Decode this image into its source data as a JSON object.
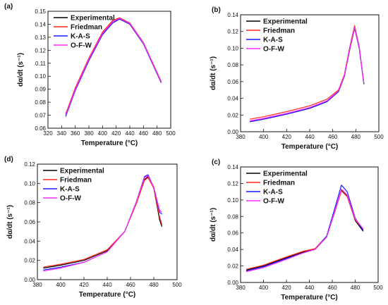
{
  "chart_data": [
    {
      "type": "line",
      "panel_label": "(a)",
      "xlabel": "Temperature (°C)",
      "ylabel": "dα/dt (s⁻¹)",
      "xlim": [
        320,
        500
      ],
      "ylim": [
        0.06,
        0.15
      ],
      "xticks": [
        320,
        340,
        360,
        380,
        400,
        420,
        440,
        460,
        480,
        500
      ],
      "yticks": [
        0.06,
        0.07,
        0.08,
        0.09,
        0.1,
        0.11,
        0.12,
        0.13,
        0.14,
        0.15
      ],
      "legend": "top-left",
      "series": [
        {
          "name": "Experimental",
          "color": "#000000",
          "x": [
            346,
            360,
            380,
            400,
            415,
            425,
            440,
            460,
            486
          ],
          "y": [
            0.07,
            0.09,
            0.113,
            0.133,
            0.142,
            0.144,
            0.14,
            0.125,
            0.095
          ]
        },
        {
          "name": "Friedman",
          "color": "#ff2a1a",
          "x": [
            346,
            360,
            380,
            400,
            415,
            425,
            440,
            460,
            486
          ],
          "y": [
            0.071,
            0.091,
            0.114,
            0.134,
            0.143,
            0.145,
            0.141,
            0.126,
            0.096
          ]
        },
        {
          "name": "K-A-S",
          "color": "#1a1aff",
          "x": [
            346,
            360,
            380,
            400,
            415,
            425,
            440,
            460,
            486
          ],
          "y": [
            0.069,
            0.089,
            0.112,
            0.132,
            0.141,
            0.144,
            0.14,
            0.125,
            0.095
          ]
        },
        {
          "name": "O-F-W",
          "color": "#ff2aff",
          "x": [
            346,
            360,
            380,
            400,
            415,
            425,
            440,
            460,
            486
          ],
          "y": [
            0.07,
            0.09,
            0.113,
            0.133,
            0.142,
            0.1445,
            0.1405,
            0.1255,
            0.0955
          ]
        }
      ]
    },
    {
      "type": "line",
      "panel_label": "(b)",
      "xlabel": "Temperature (°C)",
      "ylabel": "dα/dt (s⁻¹)",
      "xlim": [
        380,
        500
      ],
      "ylim": [
        0.0,
        0.14
      ],
      "xticks": [
        380,
        400,
        420,
        440,
        460,
        480,
        500
      ],
      "yticks": [
        0.0,
        0.02,
        0.04,
        0.06,
        0.08,
        0.1,
        0.12,
        0.14
      ],
      "legend": "top-left",
      "series": [
        {
          "name": "Experimental",
          "color": "#000000",
          "x": [
            388,
            400,
            420,
            440,
            455,
            465,
            470,
            475,
            479,
            483,
            487
          ],
          "y": [
            0.012,
            0.015,
            0.021,
            0.028,
            0.036,
            0.048,
            0.066,
            0.1,
            0.124,
            0.1,
            0.057
          ]
        },
        {
          "name": "Friedman",
          "color": "#ff2a1a",
          "x": [
            388,
            400,
            420,
            440,
            455,
            465,
            470,
            475,
            479,
            483,
            487
          ],
          "y": [
            0.015,
            0.018,
            0.024,
            0.031,
            0.039,
            0.05,
            0.068,
            0.103,
            0.127,
            0.102,
            0.058
          ]
        },
        {
          "name": "K-A-S",
          "color": "#1a1aff",
          "x": [
            388,
            400,
            420,
            440,
            455,
            465,
            470,
            475,
            479,
            483,
            487
          ],
          "y": [
            0.012,
            0.015,
            0.021,
            0.028,
            0.036,
            0.048,
            0.066,
            0.101,
            0.125,
            0.101,
            0.057
          ]
        },
        {
          "name": "O-F-W",
          "color": "#ff2aff",
          "x": [
            388,
            400,
            420,
            440,
            455,
            465,
            470,
            475,
            479,
            483,
            487
          ],
          "y": [
            0.013,
            0.016,
            0.022,
            0.029,
            0.037,
            0.049,
            0.067,
            0.101,
            0.125,
            0.101,
            0.058
          ]
        }
      ]
    },
    {
      "type": "line",
      "panel_label": "(d)",
      "xlabel": "Temperature (°C)",
      "ylabel": "dα/dt (s⁻¹)",
      "xlim": [
        380,
        500
      ],
      "ylim": [
        0.0,
        0.12
      ],
      "xticks": [
        380,
        400,
        420,
        440,
        460,
        480,
        500
      ],
      "yticks": [
        0.0,
        0.02,
        0.04,
        0.06,
        0.08,
        0.1,
        0.12
      ],
      "legend": "top-left",
      "series": [
        {
          "name": "Experimental",
          "color": "#000000",
          "x": [
            385,
            400,
            420,
            440,
            455,
            465,
            472,
            475,
            480,
            485,
            487
          ],
          "y": [
            0.012,
            0.015,
            0.02,
            0.03,
            0.05,
            0.08,
            0.104,
            0.107,
            0.095,
            0.062,
            0.055
          ]
        },
        {
          "name": "Friedman",
          "color": "#ff2a1a",
          "x": [
            385,
            400,
            420,
            440,
            455,
            465,
            472,
            475,
            480,
            485,
            487
          ],
          "y": [
            0.013,
            0.016,
            0.021,
            0.031,
            0.05,
            0.079,
            0.103,
            0.106,
            0.095,
            0.065,
            0.057
          ]
        },
        {
          "name": "K-A-S",
          "color": "#1a1aff",
          "x": [
            385,
            400,
            420,
            440,
            455,
            465,
            472,
            475,
            480,
            485,
            487
          ],
          "y": [
            0.01,
            0.013,
            0.018,
            0.029,
            0.05,
            0.081,
            0.107,
            0.109,
            0.096,
            0.07,
            0.068
          ]
        },
        {
          "name": "O-F-W",
          "color": "#ff2aff",
          "x": [
            385,
            400,
            420,
            440,
            455,
            465,
            472,
            475,
            480,
            485,
            487
          ],
          "y": [
            0.009,
            0.012,
            0.018,
            0.029,
            0.05,
            0.081,
            0.106,
            0.108,
            0.096,
            0.072,
            0.07
          ]
        }
      ]
    },
    {
      "type": "line",
      "panel_label": "(c)",
      "xlabel": "Temperature (°C)",
      "ylabel": "dα/dt (s⁻¹)",
      "xlim": [
        380,
        500
      ],
      "ylim": [
        0.0,
        0.14
      ],
      "xticks": [
        380,
        400,
        420,
        440,
        460,
        480,
        500
      ],
      "yticks": [
        0.0,
        0.02,
        0.04,
        0.06,
        0.08,
        0.1,
        0.12,
        0.14
      ],
      "legend": "top-left",
      "series": [
        {
          "name": "Experimental",
          "color": "#000000",
          "x": [
            385,
            400,
            420,
            435,
            445,
            455,
            462,
            468,
            473,
            480,
            487
          ],
          "y": [
            0.015,
            0.02,
            0.03,
            0.037,
            0.04,
            0.055,
            0.085,
            0.112,
            0.105,
            0.075,
            0.062
          ]
        },
        {
          "name": "Friedman",
          "color": "#ff2a1a",
          "x": [
            385,
            400,
            420,
            435,
            445,
            455,
            462,
            468,
            473,
            480,
            487
          ],
          "y": [
            0.016,
            0.021,
            0.031,
            0.038,
            0.041,
            0.056,
            0.085,
            0.111,
            0.104,
            0.076,
            0.064
          ]
        },
        {
          "name": "K-A-S",
          "color": "#1a1aff",
          "x": [
            385,
            400,
            420,
            435,
            445,
            455,
            462,
            468,
            473,
            480,
            487
          ],
          "y": [
            0.014,
            0.019,
            0.029,
            0.036,
            0.04,
            0.056,
            0.089,
            0.118,
            0.11,
            0.078,
            0.063
          ]
        },
        {
          "name": "O-F-W",
          "color": "#ff2aff",
          "x": [
            385,
            400,
            420,
            435,
            445,
            455,
            462,
            468,
            473,
            480,
            487
          ],
          "y": [
            0.013,
            0.018,
            0.028,
            0.036,
            0.04,
            0.055,
            0.086,
            0.113,
            0.106,
            0.077,
            0.065
          ]
        }
      ]
    }
  ]
}
